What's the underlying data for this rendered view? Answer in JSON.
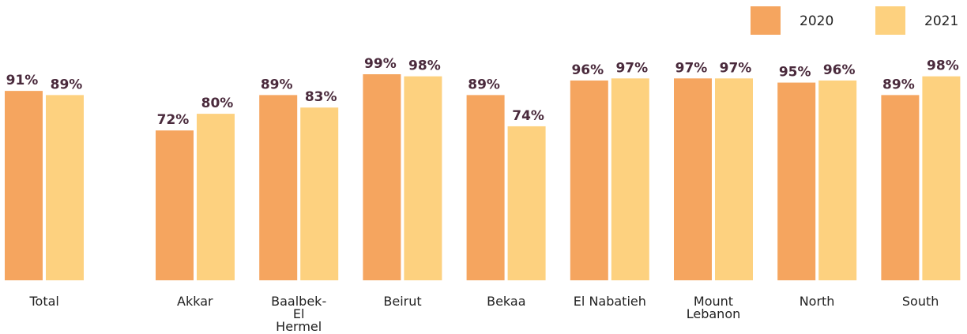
{
  "chart_data": {
    "type": "bar",
    "categories": [
      "Total",
      "Akkar",
      "Baalbek-El Hermel",
      "Beirut",
      "Bekaa",
      "El Nabatieh",
      "Mount Lebanon",
      "North",
      "South"
    ],
    "series": [
      {
        "name": "2020",
        "color": "#f5a55f",
        "values": [
          91,
          72,
          89,
          99,
          89,
          96,
          97,
          95,
          89
        ],
        "value_labels": [
          "91%",
          "72%",
          "89%",
          "99%",
          "89%",
          "96%",
          "97%",
          "95%",
          "89%"
        ]
      },
      {
        "name": "2021",
        "color": "#fdd17f",
        "values": [
          89,
          80,
          83,
          98,
          74,
          97,
          97,
          96,
          98
        ],
        "value_labels": [
          "89%",
          "80%",
          "83%",
          "98%",
          "74%",
          "97%",
          "97%",
          "96%",
          "98%"
        ]
      }
    ],
    "ylim": [
      0,
      100
    ]
  }
}
